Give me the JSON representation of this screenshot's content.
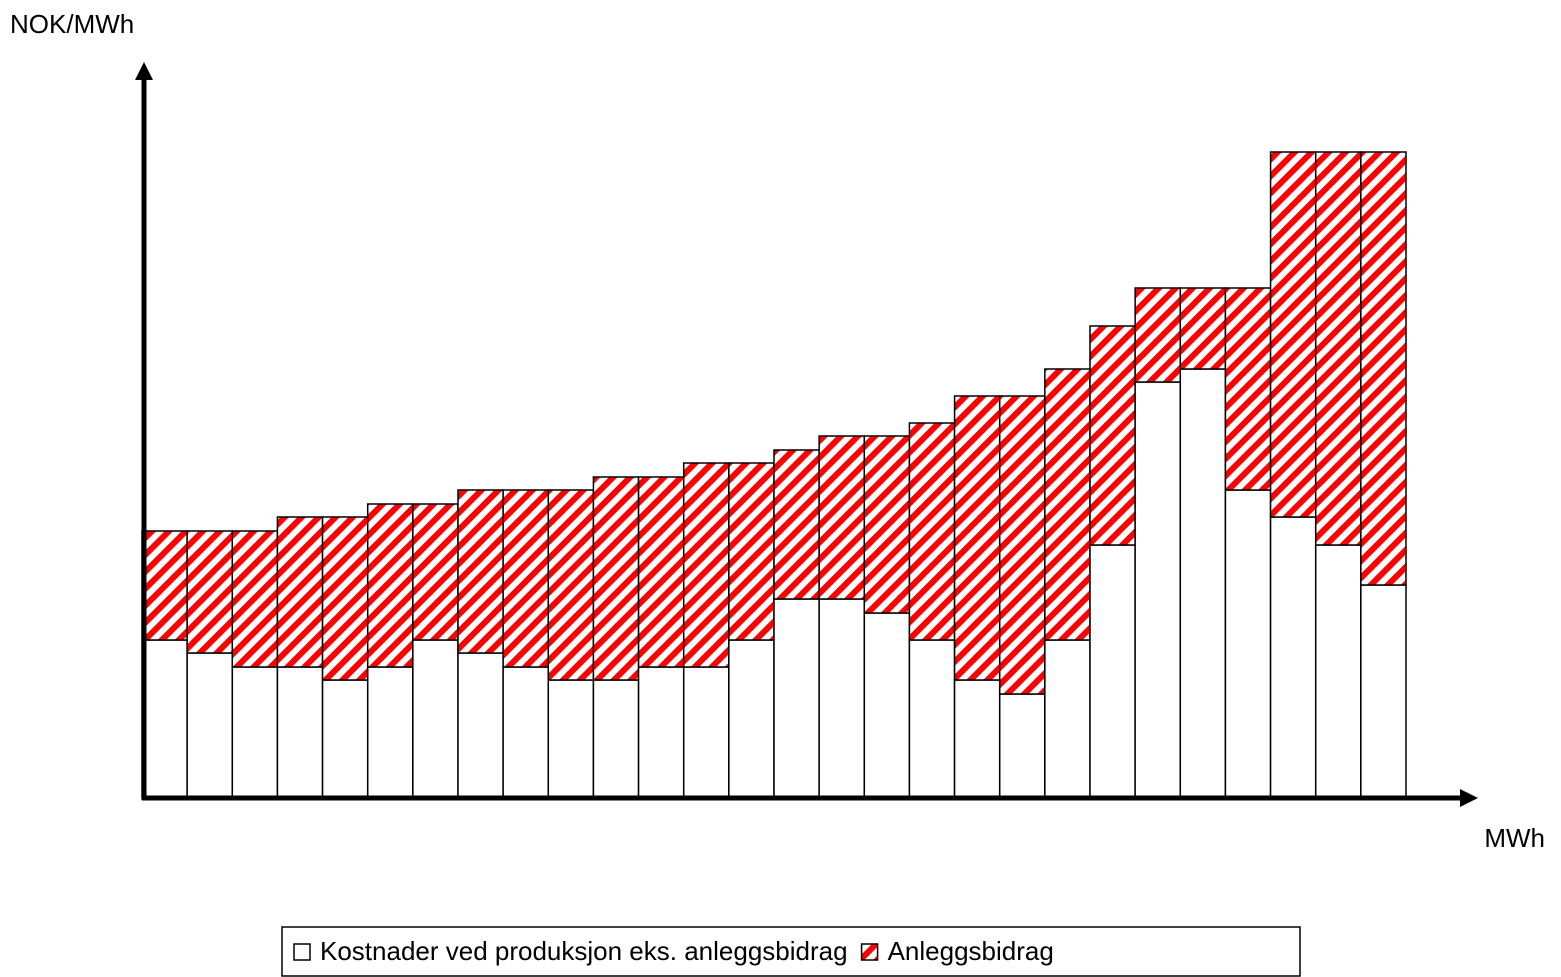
{
  "chart_data": {
    "type": "stacked_bar",
    "y_label": "NOK/MWh",
    "x_label": "MWh",
    "categories": [
      null,
      null,
      null,
      null,
      null,
      null,
      null,
      null,
      null,
      null,
      null,
      null,
      null,
      null,
      null,
      null,
      null,
      null,
      null,
      null,
      null,
      null,
      null,
      null,
      null,
      null,
      null,
      null
    ],
    "series": [
      {
        "name": "Kostnader ved produksjon eks. anleggsbidrag",
        "color": "#ffffff",
        "values": [
          158,
          145,
          131,
          131,
          118,
          131,
          158,
          145,
          131,
          118,
          118,
          131,
          131,
          158,
          199,
          199,
          185,
          158,
          118,
          104,
          158,
          253,
          416,
          429,
          308,
          281,
          253,
          213
        ]
      },
      {
        "name": "Anleggsbidrag",
        "color": "#ff0000",
        "values": [
          109,
          122,
          136,
          150,
          163,
          163,
          136,
          163,
          177,
          190,
          203,
          190,
          204,
          177,
          149,
          163,
          177,
          217,
          284,
          298,
          271,
          219,
          94,
          81,
          202,
          365,
          393,
          433
        ]
      }
    ],
    "ylim": [
      0,
      736
    ],
    "legend": "bottom"
  }
}
